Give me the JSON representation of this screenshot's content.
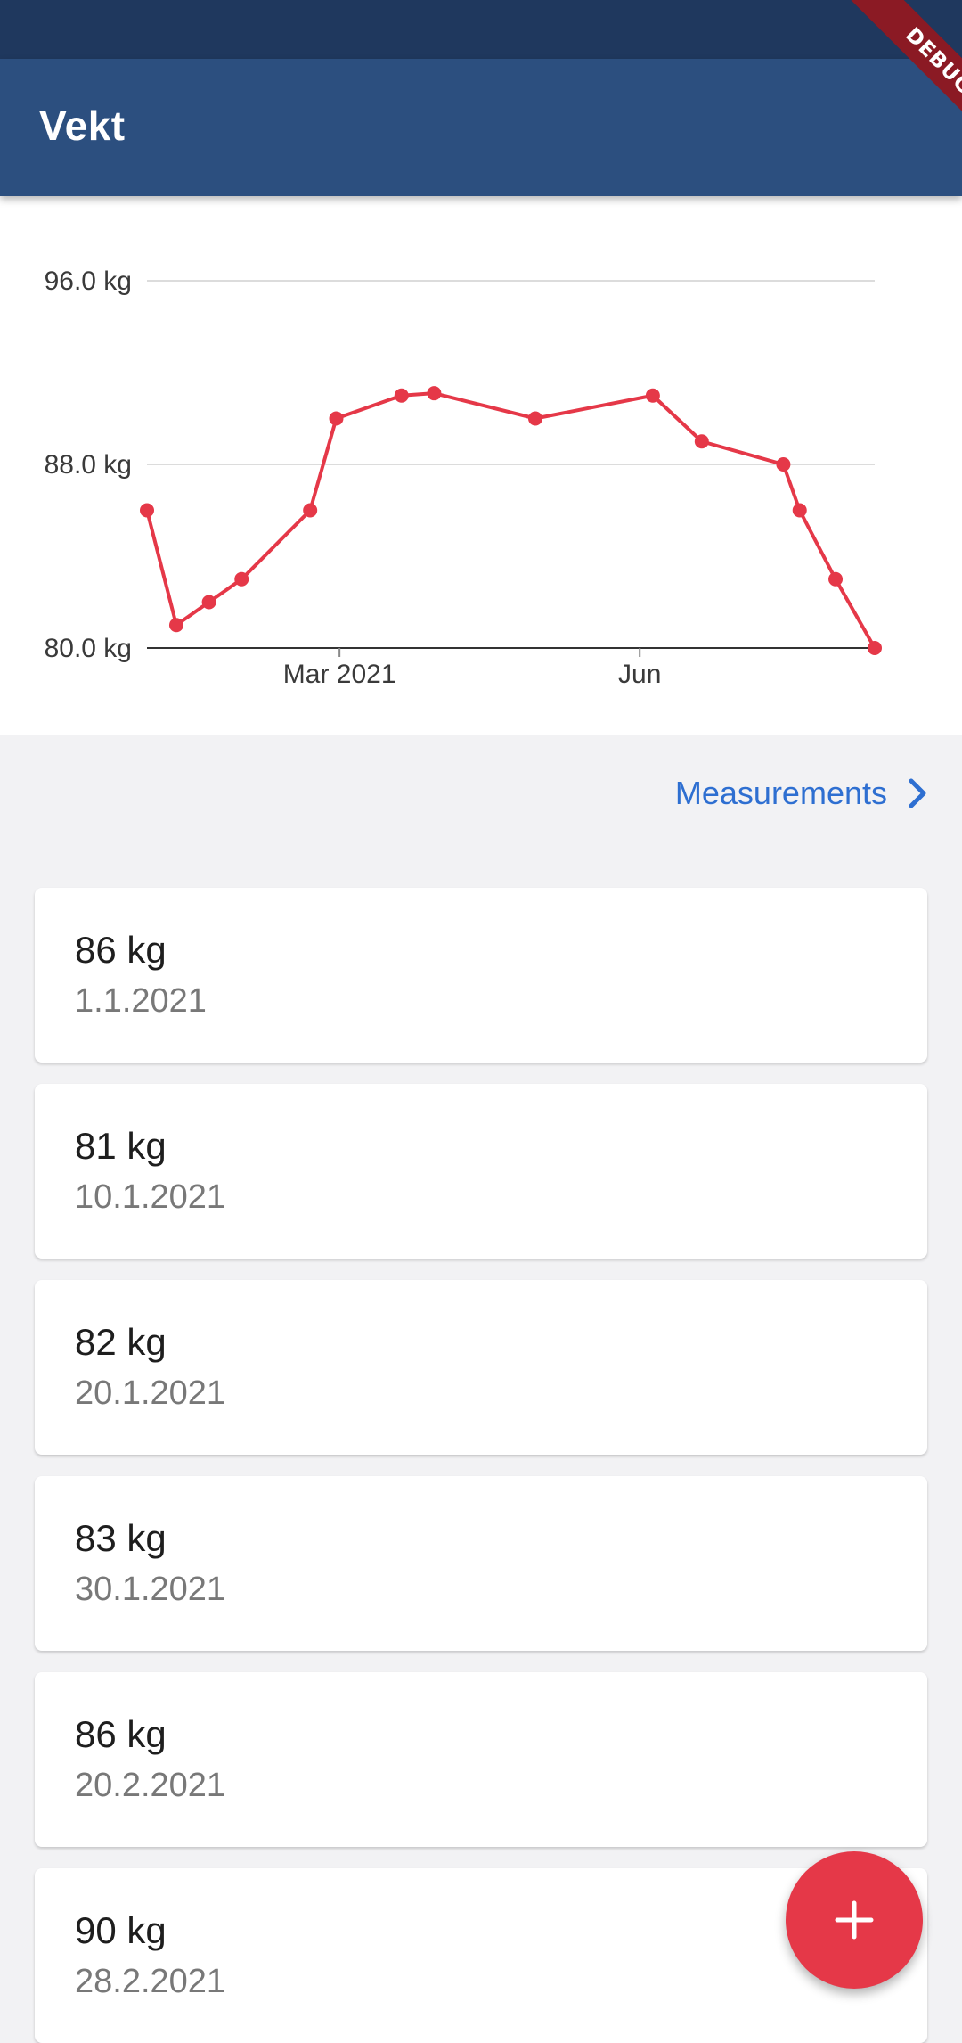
{
  "app_bar": {
    "title": "Vekt"
  },
  "debug_banner": "DEBUG",
  "colors": {
    "app_bar": "#2c4f7f",
    "status_bar": "#1f385e",
    "accent": "#e53848",
    "link": "#2e6fd1"
  },
  "chart_data": {
    "type": "line",
    "y_tick_labels": [
      "96.0 kg",
      "88.0 kg",
      "80.0 kg"
    ],
    "y_ticks": [
      96,
      88,
      80
    ],
    "ylim": [
      80,
      96
    ],
    "x_tick_labels": [
      "Mar 2021",
      "Jun"
    ],
    "x_ticks": [
      "2021-03-01",
      "2021-06-01"
    ],
    "xlim": [
      "2021-01-01",
      "2021-08-12"
    ],
    "grid": true,
    "series": [
      {
        "color": "#e53848",
        "points": [
          {
            "x": "2021-01-01",
            "y": 86
          },
          {
            "x": "2021-01-10",
            "y": 81
          },
          {
            "x": "2021-01-20",
            "y": 82
          },
          {
            "x": "2021-01-30",
            "y": 83
          },
          {
            "x": "2021-02-20",
            "y": 86
          },
          {
            "x": "2021-02-28",
            "y": 90
          },
          {
            "x": "2021-03-20",
            "y": 91
          },
          {
            "x": "2021-03-30",
            "y": 91.1
          },
          {
            "x": "2021-04-30",
            "y": 90
          },
          {
            "x": "2021-06-05",
            "y": 91
          },
          {
            "x": "2021-06-20",
            "y": 89
          },
          {
            "x": "2021-07-15",
            "y": 88
          },
          {
            "x": "2021-07-20",
            "y": 86
          },
          {
            "x": "2021-07-31",
            "y": 83
          },
          {
            "x": "2021-08-12",
            "y": 80
          }
        ]
      }
    ]
  },
  "measurements_link": {
    "label": "Measurements",
    "icon": "chevron-right-icon"
  },
  "entries": [
    {
      "weight": "86 kg",
      "date": "1.1.2021"
    },
    {
      "weight": "81 kg",
      "date": "10.1.2021"
    },
    {
      "weight": "82 kg",
      "date": "20.1.2021"
    },
    {
      "weight": "83 kg",
      "date": "30.1.2021"
    },
    {
      "weight": "86 kg",
      "date": "20.2.2021"
    },
    {
      "weight": "90 kg",
      "date": "28.2.2021"
    }
  ],
  "fab": {
    "icon": "plus-icon"
  }
}
